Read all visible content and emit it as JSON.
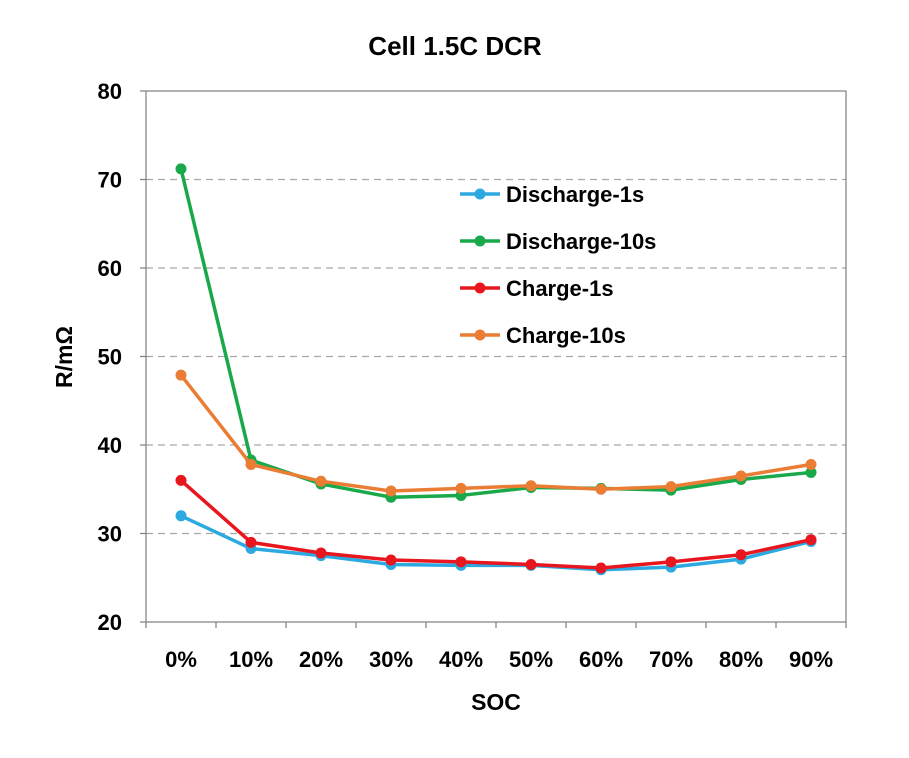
{
  "chart_data": {
    "type": "line",
    "title": "Cell 1.5C DCR",
    "xlabel": "SOC",
    "ylabel": "R/mΩ",
    "ylim": [
      20,
      80
    ],
    "yticks": [
      20,
      30,
      40,
      50,
      60,
      70,
      80
    ],
    "grid": true,
    "legend_position": "top-right",
    "categories": [
      "0%",
      "10%",
      "20%",
      "30%",
      "40%",
      "50%",
      "60%",
      "70%",
      "80%",
      "90%"
    ],
    "series": [
      {
        "name": "Discharge-1s",
        "color": "#2BA9E0",
        "values": [
          32.0,
          28.3,
          27.5,
          26.5,
          26.4,
          26.4,
          25.9,
          26.2,
          27.1,
          29.1
        ]
      },
      {
        "name": "Discharge-10s",
        "color": "#19A84A",
        "values": [
          71.2,
          38.3,
          35.6,
          34.1,
          34.3,
          35.2,
          35.1,
          34.9,
          36.1,
          36.9
        ]
      },
      {
        "name": "Charge-1s",
        "color": "#E8161E",
        "values": [
          36.0,
          29.0,
          27.8,
          27.0,
          26.8,
          26.5,
          26.1,
          26.8,
          27.6,
          29.3
        ]
      },
      {
        "name": "Charge-10s",
        "color": "#EA7D33",
        "values": [
          47.9,
          37.8,
          35.9,
          34.8,
          35.1,
          35.4,
          35.0,
          35.3,
          36.5,
          37.8
        ]
      }
    ]
  }
}
